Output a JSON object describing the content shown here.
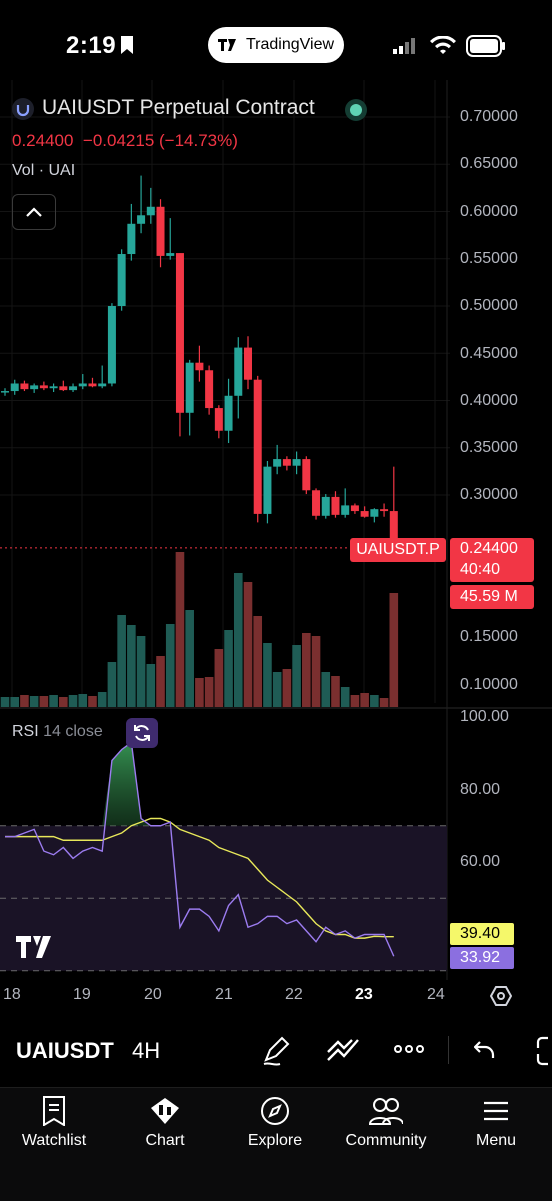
{
  "status": {
    "time": "2:19"
  },
  "app": {
    "brand": "TradingView"
  },
  "header": {
    "title": "UAIUSDT Perpetual Contract",
    "price": "0.24400",
    "change": "−0.04215 (−14.73%)",
    "volume_label": "Vol · UAI"
  },
  "price_axis": {
    "ticks": [
      "0.70000",
      "0.65000",
      "0.60000",
      "0.55000",
      "0.50000",
      "0.45000",
      "0.40000",
      "0.35000",
      "0.30000",
      "0.15000",
      "0.10000"
    ]
  },
  "tags": {
    "symbol": "UAIUSDT.P",
    "price": "0.24400",
    "countdown": "40:40",
    "volume": "45.59 M"
  },
  "rsi": {
    "label": "RSI",
    "params": "14 close",
    "ticks": [
      "100.00",
      "80.00",
      "60.00"
    ],
    "value_ma": "39.40",
    "value_rsi": "33.92"
  },
  "time_axis": {
    "ticks": [
      "18",
      "19",
      "20",
      "21",
      "22",
      "23",
      "24"
    ],
    "highlight": "23"
  },
  "toolbar": {
    "symbol": "UAIUSDT",
    "interval": "4H"
  },
  "nav": {
    "items": [
      "Watchlist",
      "Chart",
      "Explore",
      "Community",
      "Menu"
    ]
  },
  "colors": {
    "up": "#26a69a",
    "down": "#f23645",
    "rsi_line": "#9c7cf0",
    "ma_line": "#e8e85a"
  },
  "chart_data": [
    {
      "type": "candlestick",
      "title": "UAIUSDT Perpetual Contract",
      "ylim": [
        0.05,
        0.72
      ],
      "candles": [
        {
          "o": 0.409,
          "h": 0.413,
          "l": 0.405,
          "c": 0.41
        },
        {
          "o": 0.41,
          "h": 0.422,
          "l": 0.406,
          "c": 0.418
        },
        {
          "o": 0.418,
          "h": 0.421,
          "l": 0.41,
          "c": 0.412
        },
        {
          "o": 0.412,
          "h": 0.418,
          "l": 0.408,
          "c": 0.416
        },
        {
          "o": 0.416,
          "h": 0.42,
          "l": 0.411,
          "c": 0.413
        },
        {
          "o": 0.413,
          "h": 0.418,
          "l": 0.409,
          "c": 0.415
        },
        {
          "o": 0.415,
          "h": 0.421,
          "l": 0.41,
          "c": 0.411
        },
        {
          "o": 0.411,
          "h": 0.418,
          "l": 0.409,
          "c": 0.415
        },
        {
          "o": 0.415,
          "h": 0.428,
          "l": 0.412,
          "c": 0.418
        },
        {
          "o": 0.418,
          "h": 0.424,
          "l": 0.414,
          "c": 0.415
        },
        {
          "o": 0.415,
          "h": 0.437,
          "l": 0.413,
          "c": 0.418
        },
        {
          "o": 0.418,
          "h": 0.503,
          "l": 0.415,
          "c": 0.5
        },
        {
          "o": 0.5,
          "h": 0.56,
          "l": 0.495,
          "c": 0.555
        },
        {
          "o": 0.555,
          "h": 0.608,
          "l": 0.548,
          "c": 0.587
        },
        {
          "o": 0.587,
          "h": 0.638,
          "l": 0.577,
          "c": 0.596
        },
        {
          "o": 0.596,
          "h": 0.625,
          "l": 0.587,
          "c": 0.605
        },
        {
          "o": 0.605,
          "h": 0.613,
          "l": 0.541,
          "c": 0.553
        },
        {
          "o": 0.553,
          "h": 0.593,
          "l": 0.549,
          "c": 0.556
        },
        {
          "o": 0.556,
          "h": 0.556,
          "l": 0.362,
          "c": 0.387
        },
        {
          "o": 0.387,
          "h": 0.443,
          "l": 0.363,
          "c": 0.44
        },
        {
          "o": 0.44,
          "h": 0.458,
          "l": 0.42,
          "c": 0.432
        },
        {
          "o": 0.432,
          "h": 0.437,
          "l": 0.385,
          "c": 0.392
        },
        {
          "o": 0.392,
          "h": 0.395,
          "l": 0.36,
          "c": 0.368
        },
        {
          "o": 0.368,
          "h": 0.423,
          "l": 0.355,
          "c": 0.405
        },
        {
          "o": 0.405,
          "h": 0.467,
          "l": 0.381,
          "c": 0.456
        },
        {
          "o": 0.456,
          "h": 0.468,
          "l": 0.412,
          "c": 0.422
        },
        {
          "o": 0.422,
          "h": 0.426,
          "l": 0.271,
          "c": 0.28
        },
        {
          "o": 0.28,
          "h": 0.336,
          "l": 0.27,
          "c": 0.33
        },
        {
          "o": 0.33,
          "h": 0.353,
          "l": 0.322,
          "c": 0.338
        },
        {
          "o": 0.338,
          "h": 0.341,
          "l": 0.326,
          "c": 0.331
        },
        {
          "o": 0.331,
          "h": 0.346,
          "l": 0.322,
          "c": 0.338
        },
        {
          "o": 0.338,
          "h": 0.341,
          "l": 0.301,
          "c": 0.305
        },
        {
          "o": 0.305,
          "h": 0.307,
          "l": 0.274,
          "c": 0.278
        },
        {
          "o": 0.278,
          "h": 0.301,
          "l": 0.275,
          "c": 0.298
        },
        {
          "o": 0.298,
          "h": 0.304,
          "l": 0.276,
          "c": 0.279
        },
        {
          "o": 0.279,
          "h": 0.307,
          "l": 0.276,
          "c": 0.289
        },
        {
          "o": 0.289,
          "h": 0.291,
          "l": 0.28,
          "c": 0.283
        },
        {
          "o": 0.283,
          "h": 0.288,
          "l": 0.276,
          "c": 0.277
        },
        {
          "o": 0.277,
          "h": 0.286,
          "l": 0.271,
          "c": 0.285
        },
        {
          "o": 0.285,
          "h": 0.291,
          "l": 0.277,
          "c": 0.283
        },
        {
          "o": 0.283,
          "h": 0.33,
          "l": 0.231,
          "c": 0.244
        }
      ],
      "volume": [
        0.01,
        0.01,
        0.012,
        0.011,
        0.011,
        0.012,
        0.01,
        0.012,
        0.013,
        0.011,
        0.015,
        0.045,
        0.092,
        0.082,
        0.071,
        0.043,
        0.051,
        0.083,
        0.155,
        0.097,
        0.029,
        0.03,
        0.058,
        0.077,
        0.134,
        0.125,
        0.091,
        0.064,
        0.035,
        0.038,
        0.062,
        0.074,
        0.071,
        0.035,
        0.031,
        0.02,
        0.012,
        0.014,
        0.012,
        0.009,
        0.114
      ]
    },
    {
      "type": "line",
      "title": "RSI 14 close",
      "ylim": [
        30,
        100
      ],
      "series": [
        {
          "name": "RSI",
          "values": [
            67,
            67,
            68,
            69,
            63,
            62,
            64,
            61,
            63,
            64,
            63,
            88,
            91,
            93,
            72,
            70,
            70,
            71,
            42,
            47,
            47,
            45,
            41,
            48,
            51,
            42,
            43,
            45,
            45,
            43,
            44,
            41,
            38,
            42,
            40,
            41,
            39,
            40,
            40,
            40,
            34
          ]
        },
        {
          "name": "MA",
          "values": [
            67,
            67,
            67,
            67,
            67,
            67,
            66,
            66,
            66,
            66,
            66,
            67,
            68,
            70,
            71,
            72,
            72,
            71,
            69,
            68,
            67,
            66,
            64,
            63,
            62,
            61,
            58,
            55,
            53,
            51,
            49,
            46,
            43,
            41,
            40,
            40,
            39,
            39,
            39.5,
            39.4,
            39.4
          ]
        }
      ],
      "bands": [
        70,
        50,
        30
      ]
    }
  ]
}
